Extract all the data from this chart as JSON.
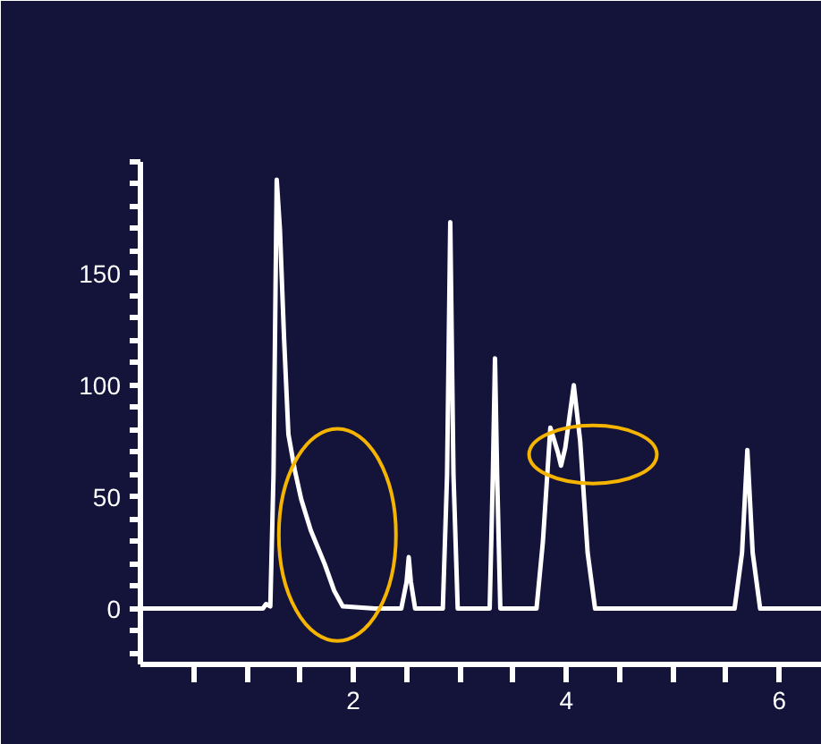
{
  "chart_data": {
    "type": "line",
    "grid": false,
    "marker": "none",
    "line_style": "solid",
    "xlim": [
      0,
      6.4
    ],
    "ylim": [
      -25,
      200
    ],
    "xticks": [
      {
        "value": 0.5,
        "label": null
      },
      {
        "value": 1,
        "label": null
      },
      {
        "value": 1.5,
        "label": null
      },
      2,
      {
        "value": 2.5,
        "label": null
      },
      {
        "value": 3,
        "label": null
      },
      {
        "value": 3.5,
        "label": null
      },
      4,
      {
        "value": 4.5,
        "label": null
      },
      {
        "value": 5,
        "label": null
      },
      {
        "value": 5.5,
        "label": null
      },
      6
    ],
    "yticks": [
      {
        "value": -20,
        "label": null
      },
      {
        "value": -10,
        "label": null
      },
      0,
      {
        "value": 10,
        "label": null
      },
      {
        "value": 20,
        "label": null
      },
      {
        "value": 30,
        "label": null
      },
      {
        "value": 40,
        "label": null
      },
      50,
      {
        "value": 60,
        "label": null
      },
      {
        "value": 70,
        "label": null
      },
      {
        "value": 80,
        "label": null
      },
      {
        "value": 90,
        "label": null
      },
      100,
      {
        "value": 110,
        "label": null
      },
      {
        "value": 120,
        "label": null
      },
      {
        "value": 130,
        "label": null
      },
      {
        "value": 140,
        "label": null
      },
      150,
      {
        "value": 160,
        "label": null
      },
      {
        "value": 170,
        "label": null
      },
      {
        "value": 180,
        "label": null
      },
      {
        "value": 190,
        "label": null
      },
      {
        "value": 200,
        "label": null
      }
    ],
    "series": [
      {
        "color": "#ffffff",
        "x": [
          0,
          1.15,
          1.18,
          1.22,
          1.25,
          1.28,
          1.31,
          1.35,
          1.39,
          1.45,
          1.51,
          1.6,
          1.73,
          1.82,
          1.9,
          2.2,
          2.45,
          2.5,
          2.52,
          2.54,
          2.58,
          2.7,
          2.84,
          2.88,
          2.91,
          2.94,
          2.98,
          3.2,
          3.28,
          3.31,
          3.33,
          3.35,
          3.38,
          3.72,
          3.78,
          3.85,
          3.92,
          3.95,
          3.99,
          4.07,
          4.13,
          4.2,
          4.27,
          5.58,
          5.65,
          5.7,
          5.75,
          5.82,
          6.4
        ],
        "values": [
          0,
          0,
          2,
          1,
          60,
          192,
          170,
          120,
          78,
          62,
          49,
          35,
          20,
          8,
          1,
          0,
          0,
          12,
          23,
          12,
          0,
          0,
          0,
          60,
          173,
          60,
          0,
          0,
          0,
          60,
          112,
          60,
          0,
          0,
          30,
          81,
          70,
          64,
          72,
          100,
          75,
          25,
          0,
          0,
          25,
          71,
          25,
          0,
          0
        ]
      }
    ]
  }
}
